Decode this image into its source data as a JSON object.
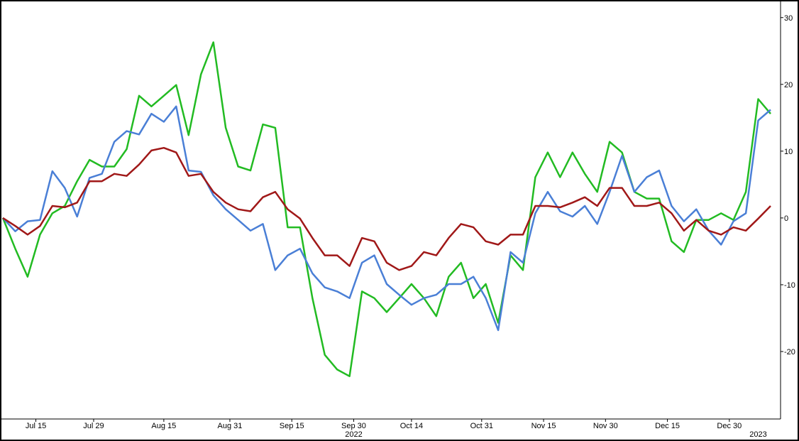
{
  "chart_data": {
    "type": "line",
    "x": [
      "2022-07-07",
      "2022-07-10",
      "2022-07-13",
      "2022-07-16",
      "2022-07-19",
      "2022-07-22",
      "2022-07-25",
      "2022-07-28",
      "2022-07-31",
      "2022-08-03",
      "2022-08-06",
      "2022-08-09",
      "2022-08-12",
      "2022-08-15",
      "2022-08-18",
      "2022-08-21",
      "2022-08-24",
      "2022-08-27",
      "2022-08-30",
      "2022-09-02",
      "2022-09-05",
      "2022-09-08",
      "2022-09-11",
      "2022-09-14",
      "2022-09-17",
      "2022-09-20",
      "2022-09-23",
      "2022-09-26",
      "2022-09-29",
      "2022-10-02",
      "2022-10-05",
      "2022-10-08",
      "2022-10-11",
      "2022-10-14",
      "2022-10-17",
      "2022-10-20",
      "2022-10-23",
      "2022-10-26",
      "2022-10-29",
      "2022-11-01",
      "2022-11-04",
      "2022-11-07",
      "2022-11-10",
      "2022-11-13",
      "2022-11-16",
      "2022-11-19",
      "2022-11-22",
      "2022-11-25",
      "2022-11-28",
      "2022-12-01",
      "2022-12-04",
      "2022-12-07",
      "2022-12-10",
      "2022-12-13",
      "2022-12-16",
      "2022-12-19",
      "2022-12-22",
      "2022-12-25",
      "2022-12-28",
      "2022-12-31",
      "2023-01-03",
      "2023-01-06",
      "2023-01-09"
    ],
    "series": [
      {
        "color": "#22bb22",
        "values": [
          0,
          -4.6,
          -8.8,
          -2.5,
          0.7,
          1.8,
          5.5,
          8.7,
          7.7,
          7.7,
          10.3,
          18.3,
          16.7,
          18.3,
          19.9,
          12.4,
          21.5,
          26.3,
          13.5,
          7.7,
          7.1,
          14,
          13.5,
          -1.4,
          -1.4,
          -12,
          -20.5,
          -22.7,
          -23.7,
          -11,
          -12,
          -14.1,
          -12,
          -9.9,
          -12,
          -14.7,
          -8.8,
          -6.7,
          -12,
          -9.9,
          -15.7,
          -5.6,
          -7.8,
          6.1,
          9.8,
          6.1,
          9.8,
          6.6,
          3.9,
          11.4,
          9.8,
          3.9,
          2.9,
          2.9,
          -3.5,
          -5.1,
          -0.3,
          -0.3,
          0.7,
          -0.3,
          3.9,
          17.8,
          15.6
        ]
      },
      {
        "color": "#4a7fd6",
        "values": [
          0,
          -2,
          -0.5,
          -0.3,
          7,
          4.5,
          0.2,
          6,
          6.6,
          11.4,
          13,
          12.5,
          15.6,
          14.4,
          16.7,
          7.1,
          6.9,
          3.4,
          1.3,
          -0.3,
          -1.9,
          -0.9,
          -7.8,
          -5.6,
          -4.6,
          -8.3,
          -10.4,
          -11,
          -12,
          -6.7,
          -5.6,
          -9.9,
          -11.5,
          -13,
          -12,
          -11.5,
          -9.9,
          -9.9,
          -8.8,
          -12,
          -16.8,
          -5.1,
          -6.7,
          0.7,
          3.9,
          1,
          0.2,
          1.8,
          -0.9,
          3.9,
          9.3,
          3.9,
          6.1,
          7.1,
          1.8,
          -0.5,
          1.3,
          -1.9,
          -4,
          -0.5,
          0.7,
          14.6,
          16.2
        ]
      },
      {
        "color": "#a01818",
        "values": [
          0,
          -1.2,
          -2.5,
          -1.2,
          1.8,
          1.6,
          2.3,
          5.5,
          5.5,
          6.6,
          6.3,
          8,
          10.1,
          10.5,
          9.8,
          6.3,
          6.6,
          3.9,
          2.3,
          1.3,
          1,
          3.1,
          3.9,
          1.3,
          -0.1,
          -3,
          -5.6,
          -5.6,
          -7.2,
          -3,
          -3.5,
          -6.7,
          -7.8,
          -7.2,
          -5.1,
          -5.6,
          -3,
          -0.9,
          -1.4,
          -3.5,
          -4,
          -2.5,
          -2.5,
          1.8,
          1.8,
          1.6,
          2.3,
          3.1,
          1.8,
          4.5,
          4.5,
          1.8,
          1.8,
          2.3,
          0.7,
          -1.9,
          -0.3,
          -1.9,
          -2.5,
          -1.4,
          -1.9,
          -0.1,
          1.8
        ]
      }
    ],
    "xlim": [
      "2022-07-07",
      "2023-01-09"
    ],
    "xticks": [
      {
        "value": "2022-07-15",
        "label": "Jul 15"
      },
      {
        "value": "2022-07-29",
        "label": "Jul 29"
      },
      {
        "value": "2022-08-15",
        "label": "Aug 15"
      },
      {
        "value": "2022-08-31",
        "label": "Aug 31"
      },
      {
        "value": "2022-09-15",
        "label": "Sep 15"
      },
      {
        "value": "2022-09-30",
        "label": "Sep 30"
      },
      {
        "value": "2022-10-14",
        "label": "Oct 14"
      },
      {
        "value": "2022-10-31",
        "label": "Oct 31"
      },
      {
        "value": "2022-11-15",
        "label": "Nov 15"
      },
      {
        "value": "2022-11-30",
        "label": "Nov 30"
      },
      {
        "value": "2022-12-15",
        "label": "Dec 15"
      },
      {
        "value": "2022-12-30",
        "label": "Dec 30"
      }
    ],
    "x_year_labels": [
      {
        "value": "2022-09-30",
        "label": "2022"
      },
      {
        "value": "2023-01-06",
        "label": "2023"
      }
    ],
    "ylim": [
      -30.1,
      32.1
    ],
    "yticks": [
      30,
      20,
      10,
      0,
      -10,
      -20
    ],
    "y_axis_side": "right"
  }
}
